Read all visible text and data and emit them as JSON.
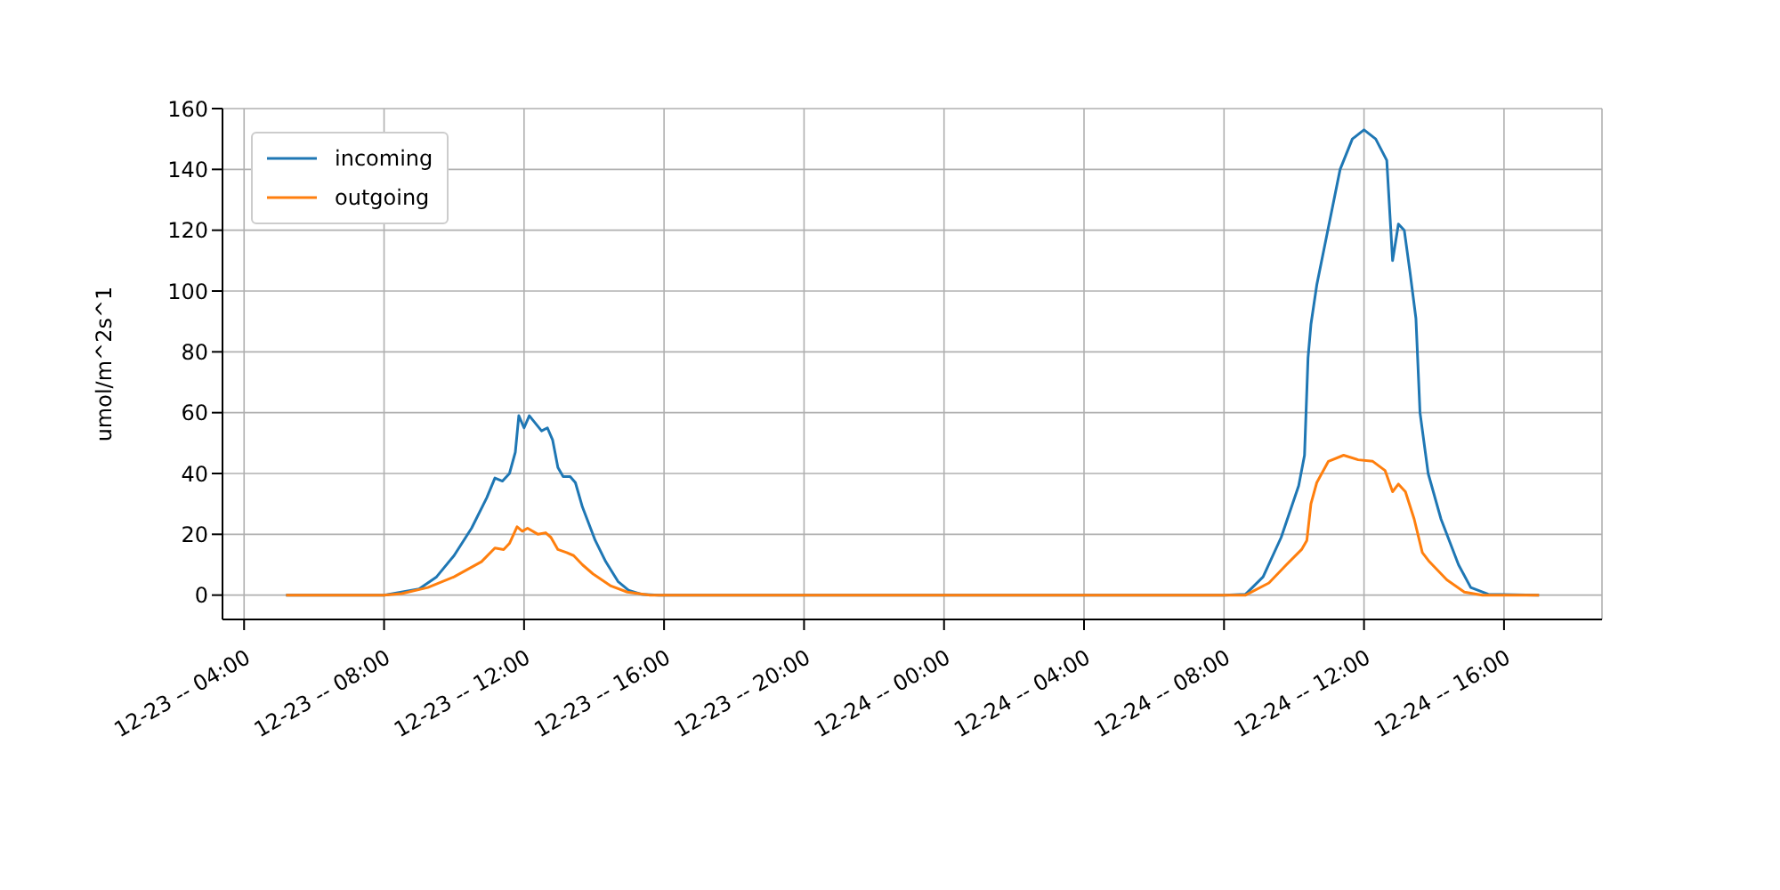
{
  "chart_data": {
    "type": "line",
    "ylabel": "umol/m^2s^1",
    "xlim": [
      "--12-23T03:23",
      "--12-24T18:48"
    ],
    "xticks": [
      {
        "value": "--12-23T04:00",
        "label": "12-23 -- 04:00"
      },
      {
        "value": "--12-23T08:00",
        "label": "12-23 -- 08:00"
      },
      {
        "value": "--12-23T12:00",
        "label": "12-23 -- 12:00"
      },
      {
        "value": "--12-23T16:00",
        "label": "12-23 -- 16:00"
      },
      {
        "value": "--12-23T20:00",
        "label": "12-23 -- 20:00"
      },
      {
        "value": "--12-24T00:00",
        "label": "12-24 -- 00:00"
      },
      {
        "value": "--12-24T04:00",
        "label": "12-24 -- 04:00"
      },
      {
        "value": "--12-24T08:00",
        "label": "12-24 -- 08:00"
      },
      {
        "value": "--12-24T12:00",
        "label": "12-24 -- 12:00"
      },
      {
        "value": "--12-24T16:00",
        "label": "12-24 -- 16:00"
      }
    ],
    "ylim": [
      -8,
      160
    ],
    "yticks": [
      0,
      20,
      40,
      60,
      80,
      100,
      120,
      140,
      160
    ],
    "grid": true,
    "legend": "top left",
    "marker": "none",
    "line_style": "solid",
    "series": [
      {
        "name": "incoming",
        "color": "#1f77b4",
        "x": [
          "--12-23T05:12",
          "--12-23T08:00",
          "--12-23T09:00",
          "--12-23T09:30",
          "--12-23T10:00",
          "--12-23T10:30",
          "--12-23T10:56",
          "--12-23T11:10",
          "--12-23T11:23",
          "--12-23T11:35",
          "--12-23T11:45",
          "--12-23T11:51",
          "--12-23T12:00",
          "--12-23T12:09",
          "--12-23T12:30",
          "--12-23T12:40",
          "--12-23T12:49",
          "--12-23T12:58",
          "--12-23T13:07",
          "--12-23T13:19",
          "--12-23T13:28",
          "--12-23T13:40",
          "--12-23T14:02",
          "--12-23T14:20",
          "--12-23T14:41",
          "--12-23T15:00",
          "--12-23T15:21",
          "--12-23T15:51",
          "--12-24T08:00",
          "--12-24T08:37",
          "--12-24T09:07",
          "--12-24T09:38",
          "--12-24T10:08",
          "--12-24T10:18",
          "--12-24T10:24",
          "--12-24T10:29",
          "--12-24T10:39",
          "--12-24T10:59",
          "--12-24T11:19",
          "--12-24T11:40",
          "--12-24T12:00",
          "--12-24T12:20",
          "--12-24T12:39",
          "--12-24T12:49",
          "--12-24T12:59",
          "--12-24T13:09",
          "--12-24T13:19",
          "--12-24T13:29",
          "--12-24T13:36",
          "--12-24T13:50",
          "--12-24T14:12",
          "--12-24T14:42",
          "--12-24T15:03",
          "--12-24T15:33",
          "--12-24T17:00"
        ],
        "values": [
          0,
          0,
          2,
          6,
          13,
          22,
          32,
          38.5,
          37.5,
          40,
          47,
          59,
          55,
          59,
          54,
          55,
          51,
          42,
          39,
          39,
          37,
          29,
          18,
          11,
          4.5,
          1.5,
          0.3,
          0,
          0,
          0.3,
          6,
          19,
          36,
          46,
          78,
          89,
          102,
          121,
          140,
          150,
          153,
          150,
          143,
          110,
          122,
          120,
          106,
          91,
          60,
          40,
          25,
          10,
          2.5,
          0.3,
          0
        ]
      },
      {
        "name": "outgoing",
        "color": "#ff7f0e",
        "x": [
          "--12-23T05:12",
          "--12-23T08:00",
          "--12-23T08:30",
          "--12-23T09:15",
          "--12-23T10:00",
          "--12-23T10:47",
          "--12-23T11:10",
          "--12-23T11:25",
          "--12-23T11:35",
          "--12-23T11:48",
          "--12-23T11:57",
          "--12-23T12:06",
          "--12-23T12:24",
          "--12-23T12:37",
          "--12-23T12:46",
          "--12-23T12:58",
          "--12-23T13:13",
          "--12-23T13:25",
          "--12-23T13:40",
          "--12-23T13:58",
          "--12-23T14:29",
          "--12-23T14:57",
          "--12-23T15:36",
          "--12-24T08:37",
          "--12-24T09:17",
          "--12-24T09:47",
          "--12-24T10:13",
          "--12-24T10:22",
          "--12-24T10:29",
          "--12-24T10:39",
          "--12-24T10:59",
          "--12-24T11:25",
          "--12-24T11:50",
          "--12-24T12:15",
          "--12-24T12:36",
          "--12-24T12:49",
          "--12-24T12:59",
          "--12-24T13:11",
          "--12-24T13:26",
          "--12-24T13:40",
          "--12-24T13:52",
          "--12-24T14:22",
          "--12-24T14:52",
          "--12-24T15:23",
          "--12-24T17:00"
        ],
        "values": [
          0,
          0,
          0.5,
          2.5,
          6,
          11,
          15.5,
          15,
          17,
          22.5,
          21,
          22,
          20,
          20.5,
          19,
          15,
          14,
          13,
          10,
          7,
          3,
          1,
          0,
          0,
          4,
          10,
          15,
          18,
          30,
          37,
          44,
          46,
          44.5,
          44,
          41,
          34,
          36.5,
          34,
          25,
          14,
          11,
          5,
          1,
          0,
          0
        ]
      }
    ]
  }
}
